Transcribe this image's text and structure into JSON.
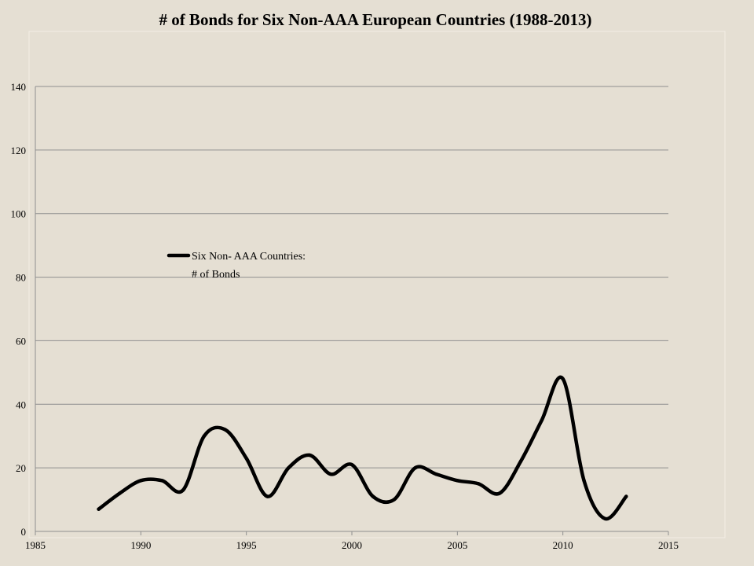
{
  "chart_data": {
    "type": "line",
    "title": "# of Bonds for Six Non-AAA European Countries (1988-2013)",
    "xlabel": "",
    "ylabel": "",
    "xlim": [
      1985,
      2015
    ],
    "ylim": [
      0,
      140
    ],
    "x_ticks": [
      1985,
      1990,
      1995,
      2000,
      2005,
      2010,
      2015
    ],
    "y_ticks": [
      0,
      20,
      40,
      60,
      80,
      100,
      120,
      140
    ],
    "grid": "horizontal",
    "legend_position": "upper-left",
    "series": [
      {
        "name_lines": [
          "Six Non- AAA Countries:",
          "# of Bonds"
        ],
        "color": "#000000",
        "x": [
          1988,
          1989,
          1990,
          1991,
          1992,
          1993,
          1994,
          1995,
          1996,
          1997,
          1998,
          1999,
          2000,
          2001,
          2002,
          2003,
          2004,
          2005,
          2006,
          2007,
          2008,
          2009,
          2010,
          2011,
          2012,
          2013
        ],
        "y": [
          7,
          12,
          16,
          16,
          13,
          30,
          32,
          23,
          11,
          20,
          24,
          18,
          21,
          11,
          10,
          20,
          18,
          16,
          15,
          12,
          22,
          35,
          48,
          16,
          4,
          11
        ]
      }
    ]
  }
}
